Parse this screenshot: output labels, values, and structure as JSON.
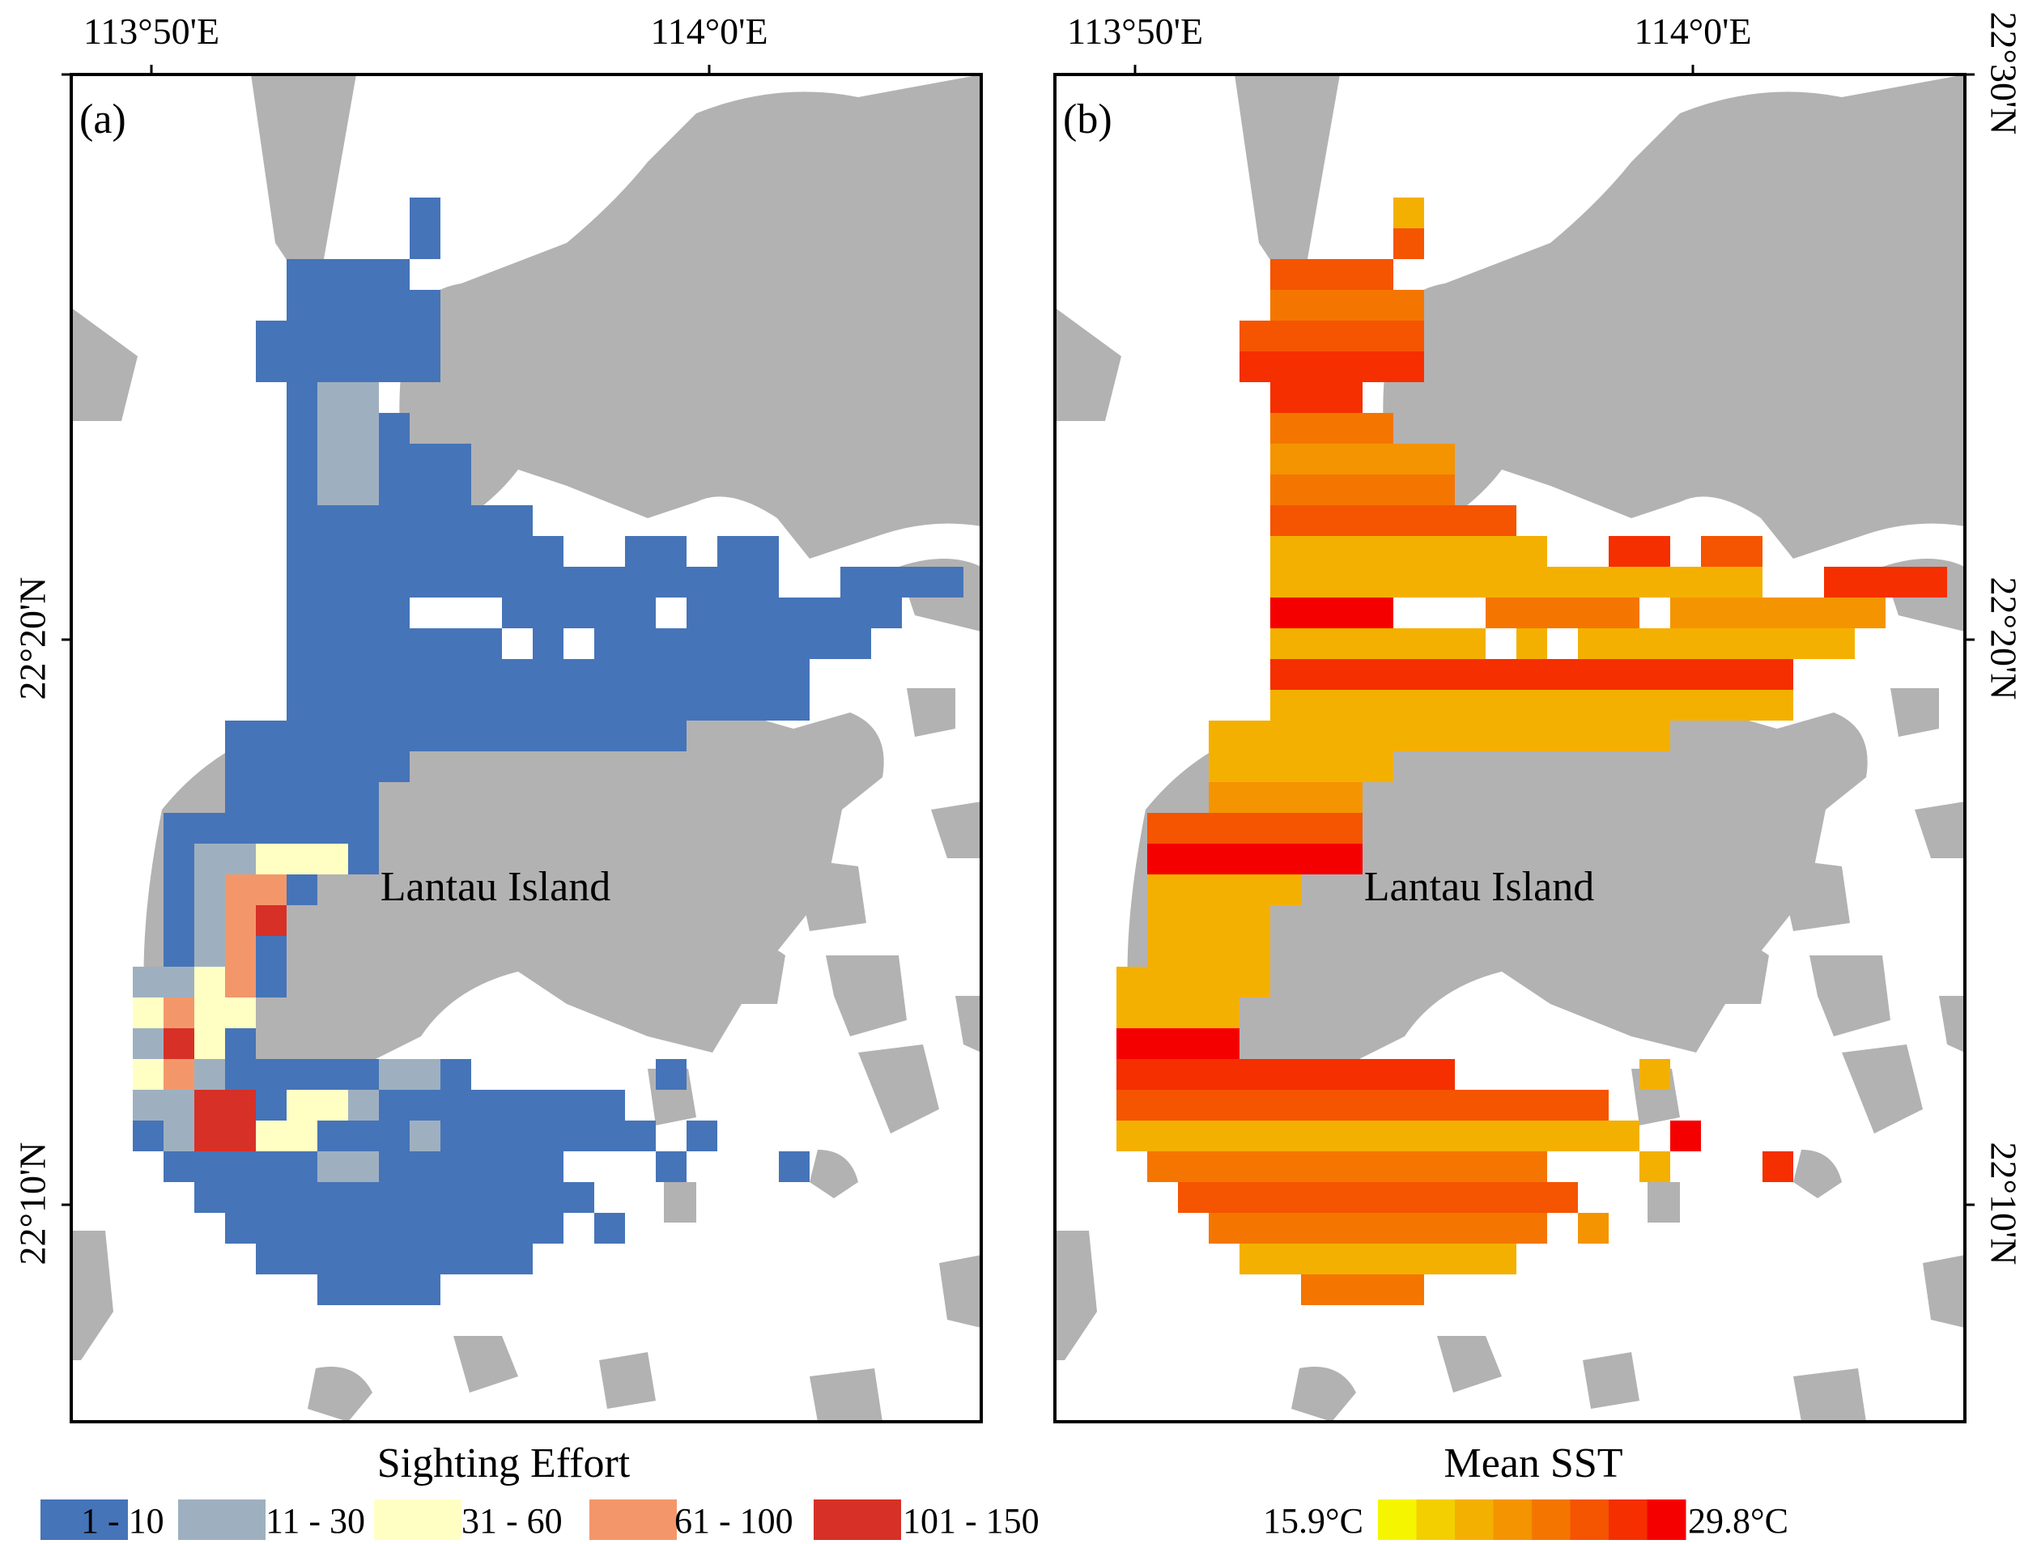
{
  "figure": {
    "panels": [
      {
        "id": "a",
        "label": "(a)",
        "island_label": "Lantau Island",
        "x_ticks": [
          "113°50'E",
          "114°0'E"
        ],
        "y_ticks": [
          "22°20'N",
          "22°10'N"
        ],
        "legend_title": "Sighting Effort",
        "legend_classes": [
          {
            "label": "1 - 10",
            "color": "#4674b8"
          },
          {
            "label": "11 - 30",
            "color": "#9eb0c0"
          },
          {
            "label": "31 - 60",
            "color": "#ffffc4"
          },
          {
            "label": "61 - 100",
            "color": "#f3976a"
          },
          {
            "label": "101 - 150",
            "color": "#d73027"
          }
        ]
      },
      {
        "id": "b",
        "label": "(b)",
        "island_label": "Lantau Island",
        "x_ticks": [
          "113°50'E",
          "114°0'E"
        ],
        "y_ticks": [
          "22°30'N",
          "22°20'N",
          "22°10'N"
        ],
        "legend_title": "Mean SST",
        "legend_min": "15.9°C",
        "legend_max": "29.8°C",
        "legend_colors": [
          "#f5f500",
          "#f3cf00",
          "#f4b000",
          "#f49400",
          "#f47600",
          "#f55400",
          "#f52f00",
          "#f50000"
        ]
      }
    ],
    "colors": {
      "land": "#b2b2b2",
      "water": "#ffffff",
      "frame": "#000000"
    }
  }
}
